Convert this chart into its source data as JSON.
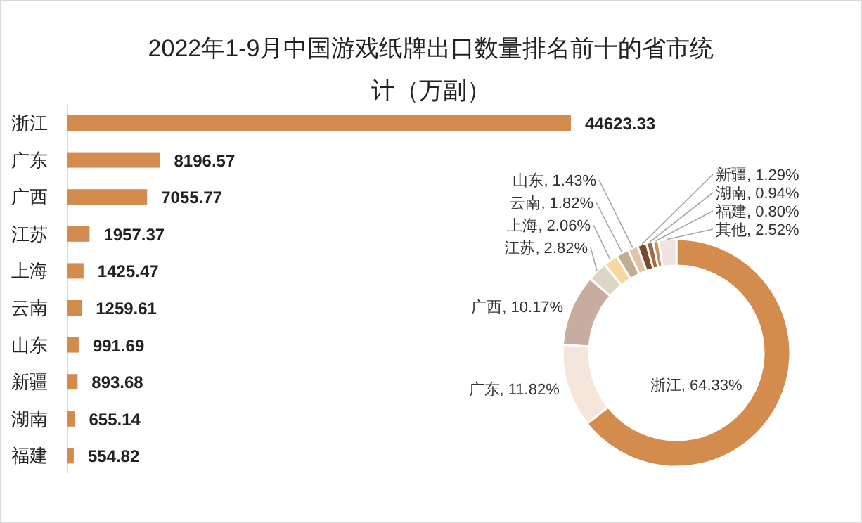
{
  "chart_data": [
    {
      "type": "bar",
      "orientation": "horizontal",
      "title": "2022年1-9月中国游戏纸牌出口数量排名前十的省市统计（万副）",
      "categories": [
        "浙江",
        "广东",
        "广西",
        "江苏",
        "上海",
        "云南",
        "山东",
        "新疆",
        "湖南",
        "福建"
      ],
      "values": [
        44623.33,
        8196.57,
        7055.77,
        1957.37,
        1425.47,
        1259.61,
        991.69,
        893.68,
        655.14,
        554.82
      ],
      "color": "#d48c4e",
      "data_labels": true
    },
    {
      "type": "donut",
      "categories": [
        "浙江",
        "广东",
        "广西",
        "江苏",
        "上海",
        "云南",
        "山东",
        "新疆",
        "湖南",
        "福建",
        "其他"
      ],
      "values": [
        64.33,
        11.82,
        10.17,
        2.82,
        2.06,
        1.82,
        1.43,
        1.29,
        0.94,
        0.8,
        2.52
      ],
      "colors": [
        "#d48c4e",
        "#f5e6dc",
        "#c9aca0",
        "#ddd6c6",
        "#f7d8a0",
        "#bfae94",
        "#e2c4a4",
        "#7a4a2a",
        "#a06a40",
        "#c89060",
        "#f0e4e0"
      ],
      "data_labels": true,
      "value_labels": [
        ", 64.33%",
        ", 11.82%",
        ", 10.17%",
        ", 2.82%",
        ", 2.06%",
        ", 1.82%",
        ", 1.43%",
        ", 1.29%",
        ", 0.94%",
        ", 0.80%",
        ", 2.52%"
      ]
    }
  ]
}
